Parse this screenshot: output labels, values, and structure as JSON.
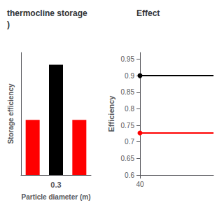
{
  "chart_data": [
    {
      "type": "bar",
      "title": "thermocline storage",
      "subtitle": ")",
      "xlabel": "Particle diameter (m)",
      "ylabel": "Storage efficiency",
      "categories": [
        null,
        "0.3",
        null
      ],
      "values": [
        0.45,
        0.9,
        0.45
      ],
      "colors": [
        "red",
        "black",
        "red"
      ],
      "ylim": [
        0.0,
        1.0
      ],
      "tick_labels": "x",
      "grid": false
    },
    {
      "type": "line",
      "title": "Effect",
      "ylabel": "Efficiency",
      "x": [
        40,
        62
      ],
      "xlim": [
        40,
        62
      ],
      "xticks": [
        40
      ],
      "ylim": [
        0.6,
        0.97
      ],
      "yticks": [
        0.6,
        0.65,
        0.7,
        0.75,
        0.8,
        0.85,
        0.9,
        0.95
      ],
      "grid": false,
      "series": [
        {
          "color": "black",
          "marker": "circle",
          "values": [
            0.9,
            0.9
          ]
        },
        {
          "color": "red",
          "marker": "circle",
          "values": [
            0.727,
            0.727
          ]
        }
      ]
    }
  ]
}
